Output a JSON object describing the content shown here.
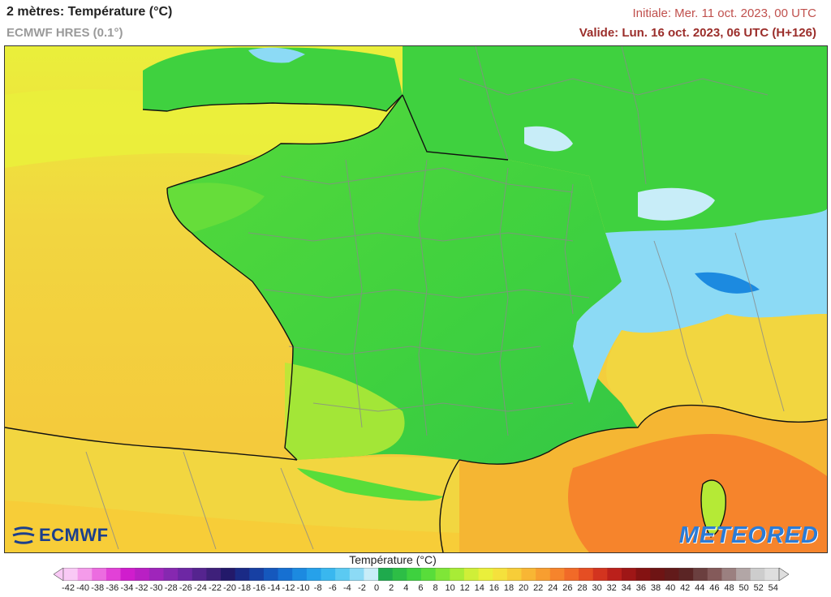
{
  "header": {
    "title": "2 mètres: Température (°C)",
    "model": "ECMWF HRES (0.1°)",
    "initial": "Initiale: Mer. 11 oct. 2023, 00 UTC",
    "valid": "Valide: Lun. 16 oct. 2023, 06 UTC (H+126)"
  },
  "logos": {
    "left": "ECMWF",
    "right": "METEORED"
  },
  "legend": {
    "title": "Température (°C)",
    "ticks": [
      -42,
      -40,
      -38,
      -36,
      -34,
      -32,
      -30,
      -28,
      -26,
      -24,
      -22,
      -20,
      -18,
      -16,
      -14,
      -12,
      -10,
      -8,
      -6,
      -4,
      -2,
      0,
      2,
      4,
      6,
      8,
      10,
      12,
      14,
      16,
      18,
      20,
      22,
      24,
      26,
      28,
      30,
      32,
      34,
      36,
      38,
      40,
      42,
      44,
      46,
      48,
      50,
      52,
      54
    ],
    "colors": [
      "#f9c9f5",
      "#f49bea",
      "#ec6ce0",
      "#e241d7",
      "#d01dcd",
      "#b91fc4",
      "#9f25bb",
      "#8628b0",
      "#6d27a4",
      "#55248f",
      "#3e207a",
      "#23196a",
      "#1a2a86",
      "#1740a3",
      "#1558bd",
      "#1670d2",
      "#1c8ae0",
      "#26a1ea",
      "#39b7ef",
      "#5bcaf2",
      "#8cdaf5",
      "#c8edf8",
      "#1faa4d",
      "#2dbe46",
      "#3ed13f",
      "#58dd3a",
      "#7fe637",
      "#a8ec36",
      "#cfef38",
      "#eaef3b",
      "#f5e13c",
      "#f7cd38",
      "#f8b634",
      "#f89e30",
      "#f6842c",
      "#f16a28",
      "#e54e23",
      "#d3341f",
      "#bb201b",
      "#9f1616",
      "#841212",
      "#6e1414",
      "#621a1a",
      "#5b2525",
      "#6b3f3f",
      "#845a5a",
      "#9b8080",
      "#b2a6a6",
      "#cdcdcd",
      "#dedede"
    ]
  },
  "map_colors": {
    "sea_warm": "#f5b633",
    "sea_mild": "#f2d640",
    "sea_cool": "#eaef3b",
    "land_green": "#3fd13f",
    "land_green_light": "#66dd3a",
    "land_yellowgreen": "#b5ea36",
    "mountain_cold": "#8cdaf5",
    "mountain_blue": "#1c8ae0",
    "med_orange": "#f6842c",
    "borders": "#8a8a8a",
    "coast": "#111111"
  }
}
